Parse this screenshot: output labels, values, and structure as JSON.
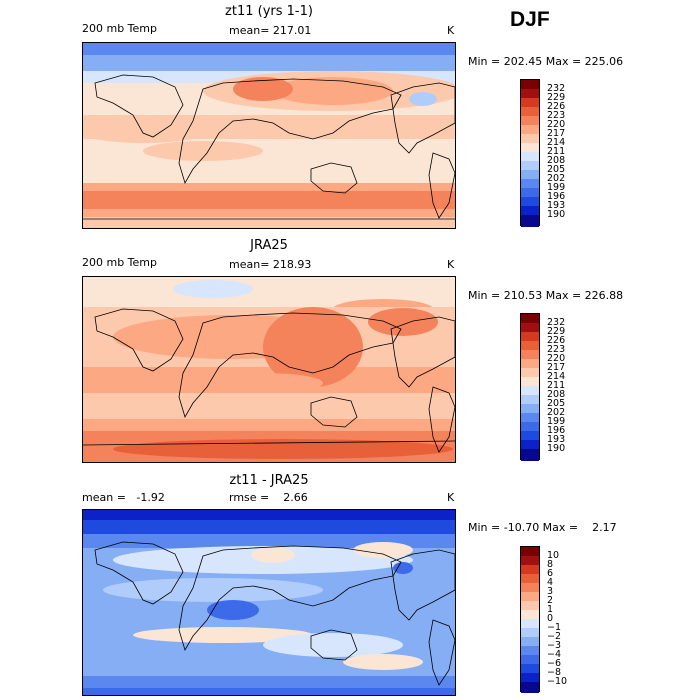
{
  "season": "DJF",
  "units": "K",
  "panels": [
    {
      "title": "zt11 (yrs 1-1)",
      "left_label": "200 mb Temp",
      "center_label": "mean= 217.01",
      "right_label": "K",
      "minmax": "Min = 202.45 Max = 225.06",
      "colorbar": [
        "190",
        "193",
        "196",
        "199",
        "202",
        "205",
        "208",
        "211",
        "214",
        "217",
        "220",
        "223",
        "226",
        "229",
        "232"
      ]
    },
    {
      "title": "JRA25",
      "left_label": "200 mb Temp",
      "center_label": "mean= 218.93",
      "right_label": "K",
      "minmax": "Min = 210.53 Max = 226.88",
      "colorbar": [
        "190",
        "193",
        "196",
        "199",
        "202",
        "205",
        "208",
        "211",
        "214",
        "217",
        "220",
        "223",
        "226",
        "229",
        "232"
      ]
    },
    {
      "title": "zt11 - JRA25",
      "left_label": "mean =   -1.92",
      "center_label": "rmse =    2.66",
      "right_label": "K",
      "minmax": "Min = -10.70 Max =    2.17",
      "colorbar": [
        "−10",
        "−8",
        "−6",
        "−4",
        "−3",
        "−2",
        "−1",
        "0",
        "1",
        "2",
        "3",
        "4",
        "6",
        "8",
        "10"
      ]
    }
  ],
  "colors": {
    "scale": [
      "#08088f",
      "#0b22c8",
      "#1e4ae0",
      "#3d6ae8",
      "#5b88ee",
      "#86aef5",
      "#b0ccfa",
      "#d7e6fd",
      "#fbe6d6",
      "#fcc9ad",
      "#fba883",
      "#f4835b",
      "#e8603a",
      "#d33a20",
      "#a01010",
      "#7a0000"
    ]
  },
  "chart_data": [
    {
      "type": "heatmap",
      "title": "zt11 (yrs 1-1)",
      "variable": "200 mb Temp",
      "units": "K",
      "mean": 217.01,
      "min": 202.45,
      "max": 225.06,
      "levels": [
        190,
        193,
        196,
        199,
        202,
        205,
        208,
        211,
        214,
        217,
        220,
        223,
        226,
        229,
        232
      ]
    },
    {
      "type": "heatmap",
      "title": "JRA25",
      "variable": "200 mb Temp",
      "units": "K",
      "mean": 218.93,
      "min": 210.53,
      "max": 226.88,
      "levels": [
        190,
        193,
        196,
        199,
        202,
        205,
        208,
        211,
        214,
        217,
        220,
        223,
        226,
        229,
        232
      ]
    },
    {
      "type": "heatmap",
      "title": "zt11 - JRA25",
      "units": "K",
      "mean": -1.92,
      "rmse": 2.66,
      "min": -10.7,
      "max": 2.17,
      "levels": [
        -10,
        -8,
        -6,
        -4,
        -3,
        -2,
        -1,
        0,
        1,
        2,
        3,
        4,
        6,
        8,
        10
      ]
    }
  ]
}
